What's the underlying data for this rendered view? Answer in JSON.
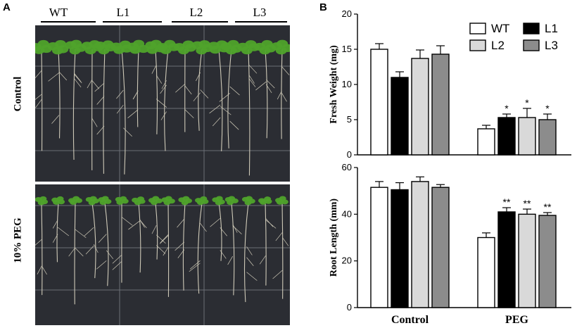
{
  "panels": {
    "a_label": "A",
    "b_label": "B"
  },
  "photo": {
    "lines": [
      "WT",
      "L1",
      "L2",
      "L3"
    ],
    "rows": [
      "Control",
      "10% PEG"
    ]
  },
  "colors": {
    "WT": "#ffffff",
    "L1": "#000000",
    "L2": "#d9d9d9",
    "L3": "#8c8c8c",
    "plate": "#2b2d33",
    "leaf": "#4fa32b",
    "root": "#cfcab8"
  },
  "chart_data": [
    {
      "type": "bar",
      "ylabel": "Fresh Weight (mg)",
      "categories": [
        "Control",
        "PEG"
      ],
      "ylim": [
        0,
        20
      ],
      "yticks": [
        0,
        5,
        10,
        15,
        20
      ],
      "legend": {
        "placement": "top-right",
        "entries": [
          "WT",
          "L1",
          "L2",
          "L3"
        ]
      },
      "series": [
        {
          "name": "WT",
          "values": [
            15.0,
            3.7
          ],
          "errors": [
            0.8,
            0.5
          ],
          "marks": [
            "",
            ""
          ]
        },
        {
          "name": "L1",
          "values": [
            11.0,
            5.3
          ],
          "errors": [
            0.8,
            0.5
          ],
          "marks": [
            "",
            "*"
          ]
        },
        {
          "name": "L2",
          "values": [
            13.7,
            5.3
          ],
          "errors": [
            1.2,
            1.3
          ],
          "marks": [
            "",
            "*"
          ]
        },
        {
          "name": "L3",
          "values": [
            14.3,
            5.0
          ],
          "errors": [
            1.2,
            0.8
          ],
          "marks": [
            "",
            "*"
          ]
        }
      ]
    },
    {
      "type": "bar",
      "ylabel": "Root Length (mm)",
      "categories": [
        "Control",
        "PEG"
      ],
      "ylim": [
        0,
        60
      ],
      "yticks": [
        0,
        20,
        40,
        60
      ],
      "series": [
        {
          "name": "WT",
          "values": [
            51.5,
            30.0
          ],
          "errors": [
            2.5,
            2.0
          ],
          "marks": [
            "",
            ""
          ]
        },
        {
          "name": "L1",
          "values": [
            50.5,
            41.0
          ],
          "errors": [
            3.0,
            1.8
          ],
          "marks": [
            "",
            "**"
          ]
        },
        {
          "name": "L2",
          "values": [
            54.0,
            40.0
          ],
          "errors": [
            2.0,
            2.2
          ],
          "marks": [
            "",
            "**"
          ]
        },
        {
          "name": "L3",
          "values": [
            51.5,
            39.5
          ],
          "errors": [
            1.2,
            1.2
          ],
          "marks": [
            "",
            "**"
          ]
        }
      ]
    }
  ]
}
